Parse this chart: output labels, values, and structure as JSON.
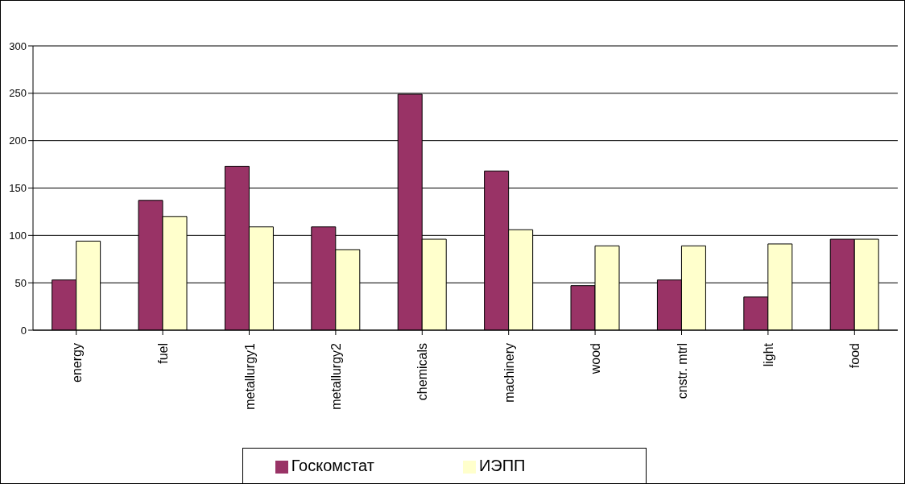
{
  "chart_data": {
    "type": "bar",
    "categories": [
      "energy",
      "fuel",
      "metallurgy1",
      "metallurgy2",
      "chemicals",
      "machinery",
      "wood",
      "cnstr. mtrl",
      "light",
      "food"
    ],
    "series": [
      {
        "name": "Госкомстат",
        "color": "#993366",
        "values": [
          53,
          137,
          173,
          109,
          249,
          168,
          47,
          53,
          35,
          96
        ]
      },
      {
        "name": "ИЭПП",
        "color": "#ffffcc",
        "values": [
          94,
          120,
          109,
          85,
          96,
          106,
          89,
          89,
          91,
          96
        ]
      }
    ],
    "ylim": [
      0,
      300
    ],
    "yticks": [
      0,
      50,
      100,
      150,
      200,
      250,
      300
    ],
    "grid": "y",
    "legend": "bottom"
  }
}
